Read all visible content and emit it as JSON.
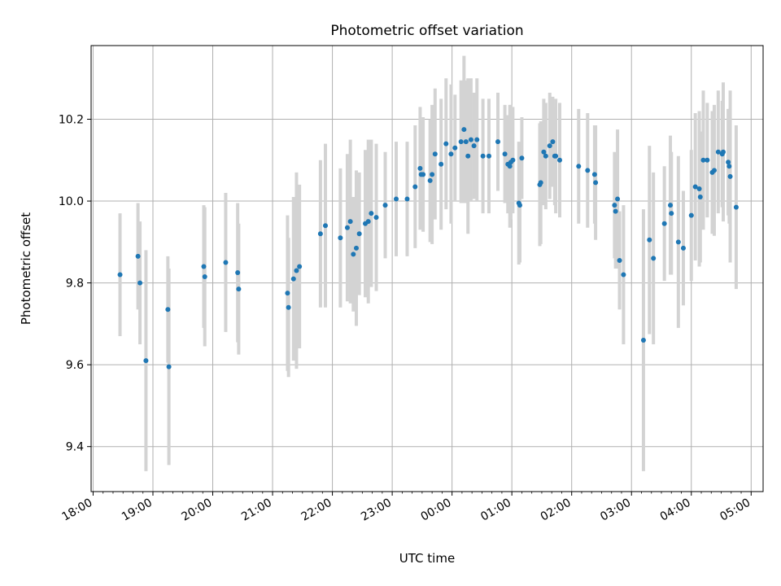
{
  "chart_data": {
    "type": "scatter",
    "title": "Photometric offset variation",
    "xlabel": "UTC time",
    "ylabel": "Photometric offset",
    "grid": true,
    "xlim": [
      "18:00",
      "05:00"
    ],
    "ylim": [
      9.29,
      10.38
    ],
    "x_ticks": [
      "18:00",
      "19:00",
      "20:00",
      "21:00",
      "22:00",
      "23:00",
      "00:00",
      "01:00",
      "02:00",
      "03:00",
      "04:00",
      "05:00"
    ],
    "y_ticks": [
      "9.4",
      "9.6",
      "9.8",
      "10.0",
      "10.2"
    ],
    "marker_color": "#1f77b4",
    "errorbar_color": "#d3d3d3",
    "series": [
      {
        "x": [
          "18:27",
          "18:45",
          "18:47",
          "18:53",
          "19:15",
          "19:16",
          "19:51",
          "19:52",
          "20:13",
          "20:25",
          "20:26",
          "21:15",
          "21:16",
          "21:21",
          "21:24",
          "21:27",
          "21:48",
          "21:53",
          "22:08",
          "22:15",
          "22:18",
          "22:21",
          "22:24",
          "22:27",
          "22:33",
          "22:36",
          "22:39",
          "22:44",
          "22:53",
          "23:04",
          "23:15",
          "23:23",
          "23:28",
          "23:29",
          "23:31",
          "23:38",
          "23:40",
          "23:43",
          "23:49",
          "23:54",
          "23:59",
          "24:03",
          "24:09",
          "24:12",
          "24:14",
          "24:16",
          "24:19",
          "24:22",
          "24:25",
          "24:31",
          "24:37",
          "24:46",
          "24:53",
          "24:56",
          "24:58",
          "24:59",
          "25:01",
          "25:07",
          "25:08",
          "25:10",
          "25:28",
          "25:29",
          "25:32",
          "25:34",
          "25:38",
          "25:41",
          "25:43",
          "25:44",
          "25:48",
          "26:07",
          "26:16",
          "26:23",
          "26:24",
          "26:43",
          "26:44",
          "26:46",
          "26:48",
          "26:52",
          "27:12",
          "27:18",
          "27:22",
          "27:33",
          "27:39",
          "27:40",
          "27:47",
          "27:52",
          "28:00",
          "28:04",
          "28:08",
          "28:09",
          "28:12",
          "28:16",
          "28:21",
          "28:23",
          "28:27",
          "28:31",
          "28:32",
          "28:37",
          "28:38",
          "28:39",
          "28:45"
        ],
        "y": [
          9.82,
          9.865,
          9.8,
          9.61,
          9.735,
          9.595,
          9.84,
          9.815,
          9.85,
          9.825,
          9.785,
          9.775,
          9.74,
          9.81,
          9.83,
          9.84,
          9.92,
          9.94,
          9.91,
          9.935,
          9.95,
          9.87,
          9.885,
          9.92,
          9.945,
          9.95,
          9.97,
          9.96,
          9.99,
          10.005,
          10.005,
          10.035,
          10.08,
          10.065,
          10.065,
          10.05,
          10.065,
          10.115,
          10.09,
          10.14,
          10.115,
          10.13,
          10.145,
          10.175,
          10.145,
          10.11,
          10.15,
          10.135,
          10.15,
          10.11,
          10.11,
          10.145,
          10.115,
          10.09,
          10.085,
          10.095,
          10.1,
          9.995,
          9.99,
          10.105,
          10.04,
          10.045,
          10.12,
          10.11,
          10.135,
          10.145,
          10.11,
          10.11,
          10.1,
          10.085,
          10.075,
          10.065,
          10.045,
          9.99,
          9.975,
          10.005,
          9.855,
          9.82,
          9.66,
          9.905,
          9.86,
          9.945,
          9.99,
          9.97,
          9.9,
          9.885,
          9.965,
          10.035,
          10.03,
          10.01,
          10.1,
          10.1,
          10.07,
          10.075,
          10.12,
          10.115,
          10.12,
          10.095,
          10.085,
          10.06,
          9.985
        ],
        "err": [
          0.15,
          0.13,
          0.15,
          0.27,
          0.13,
          0.24,
          0.15,
          0.17,
          0.17,
          0.17,
          0.16,
          0.19,
          0.17,
          0.2,
          0.24,
          0.2,
          0.18,
          0.2,
          0.17,
          0.18,
          0.2,
          0.14,
          0.19,
          0.15,
          0.18,
          0.2,
          0.18,
          0.18,
          0.13,
          0.14,
          0.14,
          0.15,
          0.15,
          0.13,
          0.14,
          0.15,
          0.17,
          0.16,
          0.16,
          0.16,
          0.17,
          0.13,
          0.15,
          0.18,
          0.15,
          0.19,
          0.15,
          0.13,
          0.15,
          0.14,
          0.14,
          0.12,
          0.12,
          0.12,
          0.15,
          0.14,
          0.13,
          0.15,
          0.14,
          0.1,
          0.15,
          0.15,
          0.13,
          0.13,
          0.13,
          0.11,
          0.12,
          0.14,
          0.14,
          0.14,
          0.14,
          0.12,
          0.14,
          0.13,
          0.14,
          0.17,
          0.12,
          0.17,
          0.32,
          0.23,
          0.21,
          0.14,
          0.17,
          0.15,
          0.21,
          0.14,
          0.16,
          0.18,
          0.19,
          0.16,
          0.17,
          0.14,
          0.15,
          0.16,
          0.15,
          0.13,
          0.17,
          0.13,
          0.14,
          0.21,
          0.2
        ]
      }
    ]
  }
}
